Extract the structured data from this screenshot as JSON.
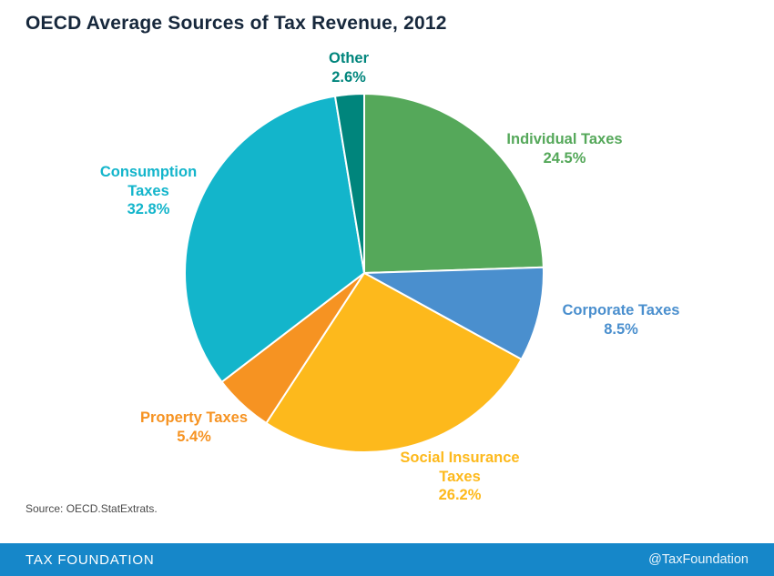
{
  "title": "OECD Average Sources of Tax Revenue, 2012",
  "source": "Source: OECD.StatExtrats.",
  "footer": {
    "brand": "TAX FOUNDATION",
    "handle": "@TaxFoundation",
    "bar_color": "#1687c9"
  },
  "chart_data": {
    "type": "pie",
    "title": "OECD Average Sources of Tax Revenue, 2012",
    "start_angle_deg": -90,
    "direction": "clockwise",
    "total": 100.0,
    "slices": [
      {
        "label": "Individual Taxes",
        "value": 24.5,
        "display": "24.5%",
        "color": "#55a85a"
      },
      {
        "label": "Corporate Taxes",
        "value": 8.5,
        "display": "8.5%",
        "color": "#4a8fce"
      },
      {
        "label": "Social Insurance Taxes",
        "value": 26.2,
        "display": "26.2%",
        "color": "#fdb91c"
      },
      {
        "label": "Property Taxes",
        "value": 5.4,
        "display": "5.4%",
        "color": "#f69322"
      },
      {
        "label": "Consumption Taxes",
        "value": 32.8,
        "display": "32.8%",
        "color": "#13b5cb"
      },
      {
        "label": "Other",
        "value": 2.6,
        "display": "2.6%",
        "color": "#00857c"
      }
    ]
  }
}
